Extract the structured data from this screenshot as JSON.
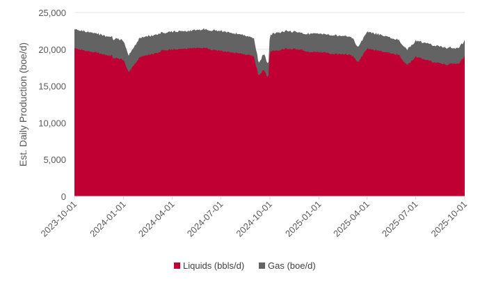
{
  "chart_data": {
    "type": "area",
    "stacked": true,
    "ylabel": "Est. Daily Production (boe/d)",
    "ylim": [
      0,
      25000
    ],
    "yticks": [
      0,
      5000,
      10000,
      15000,
      20000,
      25000
    ],
    "ytick_labels": [
      "0",
      "5,000",
      "10,000",
      "15,000",
      "20,000",
      "25,000"
    ],
    "xticks": [
      "2023-10-01",
      "2024-01-01",
      "2024-04-01",
      "2024-07-01",
      "2024-10-01",
      "2025-01-01",
      "2025-04-01",
      "2025-07-01",
      "2025-10-01"
    ],
    "x_range": [
      "2023-10-01",
      "2025-10-01"
    ],
    "grid": "horizontal",
    "legend_position": "bottom",
    "colors": {
      "liquids": "#C00033",
      "gas": "#636363",
      "axis": "#D9D9D9",
      "grid": "#E6E6E6"
    },
    "x": [
      "2023-10-01",
      "2023-11-01",
      "2023-12-01",
      "2024-01-01",
      "2024-01-10",
      "2024-02-01",
      "2024-03-01",
      "2024-04-01",
      "2024-05-01",
      "2024-06-01",
      "2024-07-01",
      "2024-08-01",
      "2024-09-01",
      "2024-09-10",
      "2024-09-20",
      "2024-09-28",
      "2024-10-01",
      "2024-10-10",
      "2024-11-01",
      "2024-12-01",
      "2025-01-01",
      "2025-02-01",
      "2025-03-01",
      "2025-03-15",
      "2025-04-01",
      "2025-05-01",
      "2025-06-01",
      "2025-06-15",
      "2025-07-01",
      "2025-08-01",
      "2025-09-01",
      "2025-09-20",
      "2025-10-01"
    ],
    "series": [
      {
        "name": "Liquids (bbls/d)",
        "values": [
          20000,
          19600,
          19100,
          18700,
          17000,
          19100,
          19600,
          19900,
          20000,
          20100,
          19900,
          19600,
          19200,
          16200,
          17200,
          15800,
          19600,
          19700,
          20000,
          19800,
          19700,
          19500,
          19400,
          18100,
          20000,
          19600,
          19100,
          17900,
          19100,
          18400,
          18000,
          17900,
          19000
        ]
      },
      {
        "name": "Gas (boe/d)",
        "values": [
          2700,
          2700,
          2700,
          2500,
          2200,
          2500,
          2400,
          2500,
          2500,
          2600,
          2600,
          2500,
          2400,
          1800,
          2300,
          1800,
          2300,
          2500,
          2500,
          2400,
          2400,
          2400,
          2400,
          2100,
          2400,
          2300,
          2100,
          2000,
          2100,
          2200,
          2200,
          2200,
          2200
        ]
      }
    ]
  }
}
